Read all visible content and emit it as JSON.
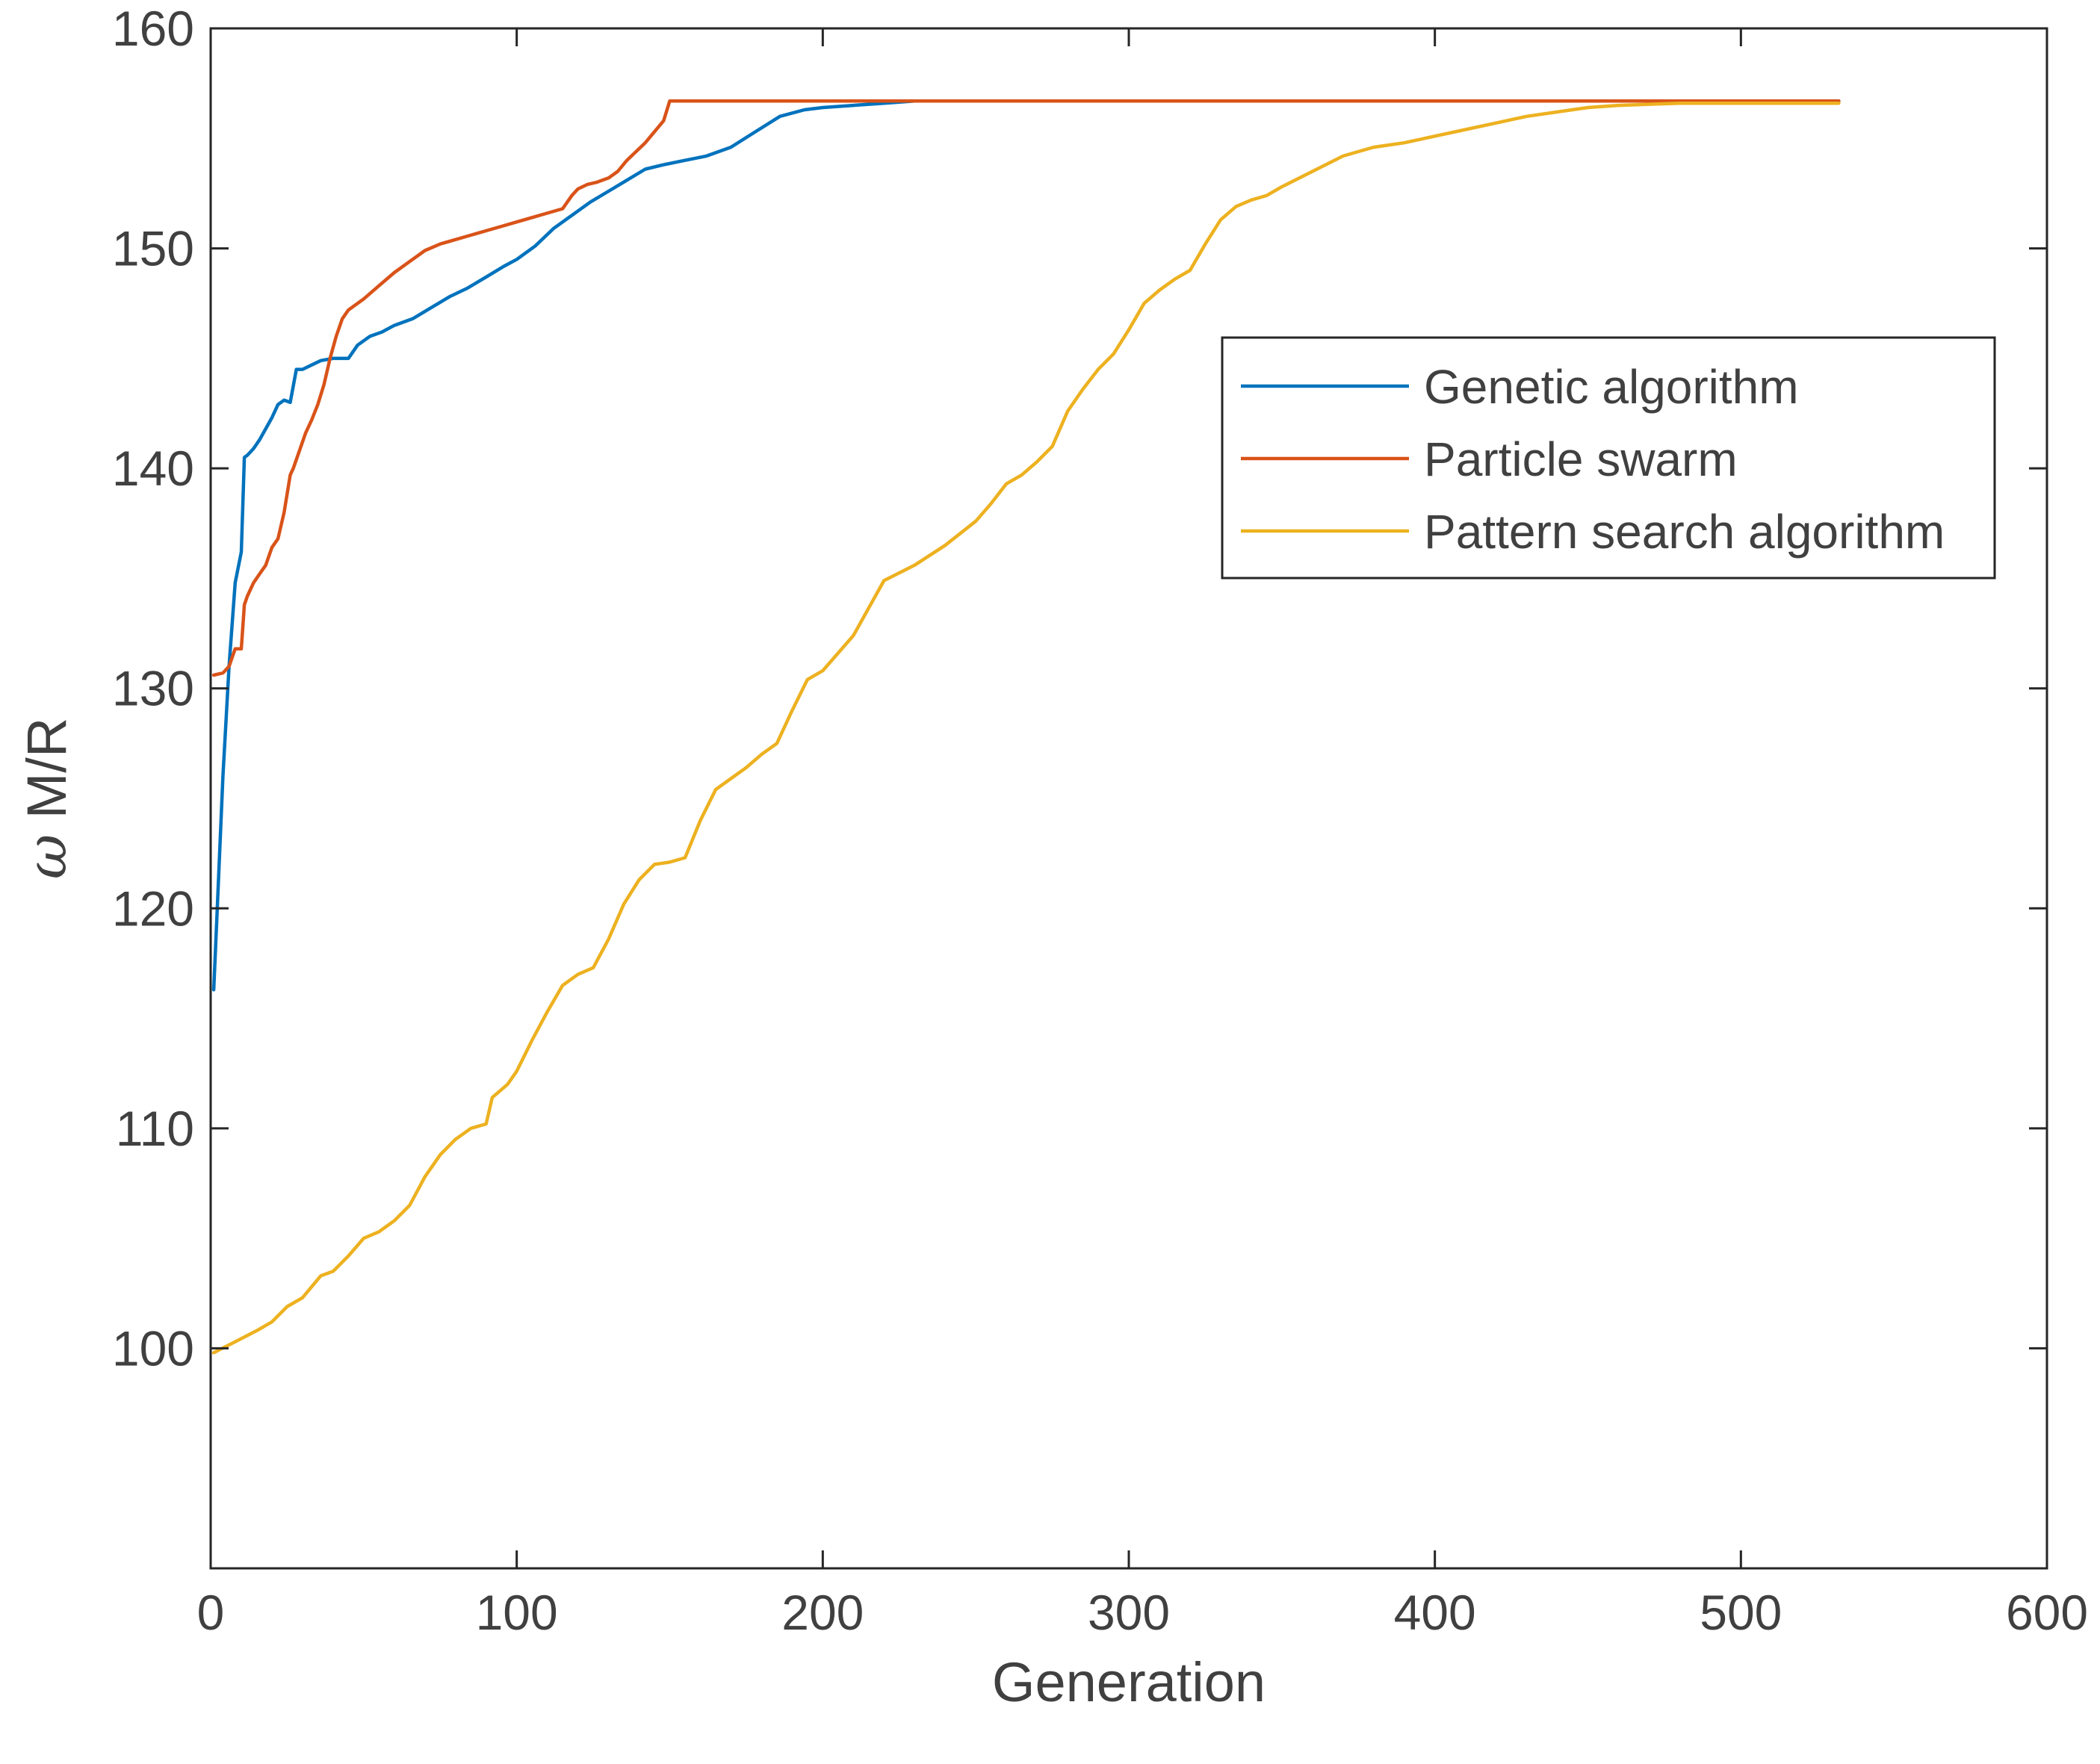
{
  "chart_data": {
    "type": "line",
    "title": "",
    "xlabel": "Generation",
    "ylabel_symbol": "ω",
    "ylabel": "M/R",
    "xlim": [
      0,
      600
    ],
    "ylim": [
      90,
      160
    ],
    "xticks": [
      0,
      100,
      200,
      300,
      400,
      500,
      600
    ],
    "yticks": [
      100,
      110,
      120,
      130,
      140,
      150,
      160
    ],
    "grid": false,
    "legend_position": "top-right",
    "series": [
      {
        "name": "Genetic algorithm",
        "color": "#0072BD",
        "x": [
          1,
          2,
          4,
          6,
          8,
          10,
          11,
          12,
          14,
          16,
          18,
          20,
          22,
          24,
          26,
          28,
          30,
          33,
          36,
          40,
          45,
          48,
          52,
          56,
          60,
          66,
          72,
          78,
          84,
          90,
          96,
          100,
          106,
          112,
          118,
          124,
          130,
          136,
          142,
          148,
          155,
          162,
          170,
          178,
          186,
          194,
          200,
          210,
          220,
          230,
          240,
          532
        ],
        "values": [
          116.3,
          119.5,
          126.0,
          131.0,
          134.8,
          136.2,
          140.5,
          140.6,
          140.9,
          141.3,
          141.8,
          142.3,
          142.9,
          143.1,
          143.0,
          144.5,
          144.5,
          144.7,
          144.9,
          145.0,
          145.0,
          145.6,
          146.0,
          146.2,
          146.5,
          146.8,
          147.3,
          147.8,
          148.2,
          148.7,
          149.2,
          149.5,
          150.1,
          150.9,
          151.5,
          152.1,
          152.6,
          153.1,
          153.6,
          153.8,
          154.0,
          154.2,
          154.6,
          155.3,
          156.0,
          156.3,
          156.4,
          156.5,
          156.6,
          156.7,
          156.7,
          156.7
        ]
      },
      {
        "name": "Particle swarm",
        "color": "#D95319",
        "x": [
          1,
          4,
          6,
          8,
          10,
          11,
          12,
          14,
          16,
          18,
          20,
          22,
          24,
          26,
          27,
          29,
          31,
          33,
          35,
          37,
          39,
          41,
          43,
          45,
          50,
          55,
          60,
          65,
          70,
          75,
          80,
          85,
          90,
          95,
          100,
          105,
          110,
          115,
          118,
          120,
          123,
          126,
          130,
          133,
          136,
          139,
          142,
          145,
          148,
          150,
          160,
          200,
          300,
          400,
          532
        ],
        "values": [
          130.6,
          130.7,
          131.0,
          131.8,
          131.8,
          133.8,
          134.2,
          134.8,
          135.2,
          135.6,
          136.4,
          136.8,
          138.0,
          139.7,
          140.0,
          140.8,
          141.6,
          142.2,
          142.9,
          143.8,
          145.0,
          146.0,
          146.8,
          147.2,
          147.7,
          148.3,
          148.9,
          149.4,
          149.9,
          150.2,
          150.4,
          150.6,
          150.8,
          151.0,
          151.2,
          151.4,
          151.6,
          151.8,
          152.4,
          152.7,
          152.9,
          153.0,
          153.2,
          153.5,
          154.0,
          154.4,
          154.8,
          155.3,
          155.8,
          156.7,
          156.7,
          156.7,
          156.7,
          156.7,
          156.7
        ]
      },
      {
        "name": "Pattern search algorithm",
        "color": "#EDB120",
        "x": [
          1,
          8,
          15,
          20,
          25,
          30,
          36,
          40,
          45,
          50,
          55,
          60,
          65,
          70,
          75,
          80,
          85,
          90,
          92,
          97,
          100,
          105,
          110,
          115,
          120,
          125,
          130,
          135,
          140,
          145,
          150,
          155,
          160,
          165,
          170,
          175,
          180,
          185,
          190,
          195,
          200,
          210,
          220,
          230,
          240,
          250,
          255,
          260,
          265,
          270,
          275,
          280,
          285,
          290,
          295,
          300,
          305,
          310,
          315,
          320,
          325,
          330,
          335,
          340,
          345,
          350,
          360,
          370,
          380,
          390,
          400,
          410,
          420,
          430,
          440,
          450,
          460,
          470,
          480,
          490,
          500,
          510,
          520,
          532
        ],
        "values": [
          99.8,
          100.3,
          100.8,
          101.2,
          101.9,
          102.3,
          103.3,
          103.5,
          104.2,
          105.0,
          105.3,
          105.8,
          106.5,
          107.8,
          108.8,
          109.5,
          110.0,
          110.2,
          111.4,
          112.0,
          112.6,
          114.0,
          115.3,
          116.5,
          117.0,
          117.3,
          118.6,
          120.2,
          121.3,
          122.0,
          122.1,
          122.3,
          124.0,
          125.4,
          125.9,
          126.4,
          127.0,
          127.5,
          129.0,
          130.4,
          130.8,
          132.4,
          134.9,
          135.6,
          136.5,
          137.6,
          138.4,
          139.3,
          139.7,
          140.3,
          141.0,
          142.6,
          143.6,
          144.5,
          145.2,
          146.3,
          147.5,
          148.1,
          148.6,
          149.0,
          150.2,
          151.3,
          151.9,
          152.2,
          152.4,
          152.8,
          153.5,
          154.2,
          154.6,
          154.8,
          155.1,
          155.4,
          155.7,
          156.0,
          156.2,
          156.4,
          156.5,
          156.55,
          156.6,
          156.6,
          156.6,
          156.6,
          156.6,
          156.6
        ]
      }
    ],
    "legend_entries": [
      "Genetic algorithm",
      "Particle swarm",
      "Pattern search algorithm"
    ]
  }
}
